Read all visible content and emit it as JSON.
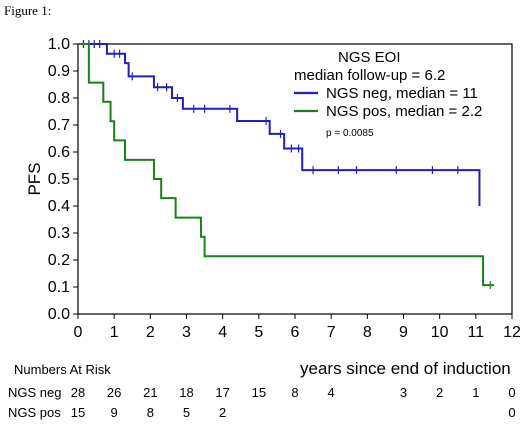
{
  "figure_label": "Figure 1:",
  "chart_data": {
    "type": "line",
    "ylabel": "PFS",
    "xlabel": "years since end of induction",
    "xlim": [
      0,
      12
    ],
    "ylim": [
      0.0,
      1.0
    ],
    "x_ticks": [
      "0",
      "1",
      "2",
      "3",
      "4",
      "5",
      "6",
      "7",
      "8",
      "9",
      "10",
      "11",
      "12"
    ],
    "y_ticks": [
      "0.0",
      "0.1",
      "0.2",
      "0.3",
      "0.4",
      "0.5",
      "0.6",
      "0.7",
      "0.8",
      "0.9",
      "1.0"
    ],
    "legend": {
      "title": "NGS EOI",
      "subtitle": "median follow-up = 6.2",
      "placement": "top-right"
    },
    "annotation": "p = 0.0085",
    "series": [
      {
        "name": "NGS neg, median =  11",
        "color": "#1f1fbf",
        "steps": [
          [
            0,
            1.0
          ],
          [
            0.8,
            0.964
          ],
          [
            1.3,
            0.929
          ],
          [
            1.4,
            0.88
          ],
          [
            2.1,
            0.84
          ],
          [
            2.6,
            0.8
          ],
          [
            2.9,
            0.76
          ],
          [
            4.4,
            0.715
          ],
          [
            5.3,
            0.667
          ],
          [
            5.7,
            0.613
          ],
          [
            6.2,
            0.533
          ],
          [
            11.1,
            0.533
          ],
          [
            11.1,
            0.4
          ]
        ],
        "censored": [
          0.15,
          0.3,
          0.45,
          0.6,
          1.0,
          1.15,
          1.5,
          2.2,
          2.45,
          2.75,
          3.2,
          3.5,
          4.2,
          5.2,
          5.6,
          5.9,
          6.1,
          6.5,
          7.2,
          7.7,
          8.8,
          9.8,
          10.5
        ]
      },
      {
        "name": "NGS pos, median = 2.2",
        "color": "#1a801a",
        "steps": [
          [
            0,
            1.0
          ],
          [
            0.3,
            0.857
          ],
          [
            0.7,
            0.786
          ],
          [
            0.9,
            0.714
          ],
          [
            1.0,
            0.643
          ],
          [
            1.3,
            0.571
          ],
          [
            2.1,
            0.5
          ],
          [
            2.3,
            0.429
          ],
          [
            2.7,
            0.357
          ],
          [
            3.4,
            0.286
          ],
          [
            3.5,
            0.214
          ],
          [
            11.2,
            0.214
          ],
          [
            11.2,
            0.107
          ],
          [
            11.5,
            0.107
          ]
        ],
        "censored": [
          11.4
        ]
      }
    ]
  },
  "risk_table": {
    "title": "Numbers At Risk",
    "rows": [
      {
        "label": "NGS neg",
        "counts": [
          "28",
          "26",
          "21",
          "18",
          "17",
          "15",
          "8",
          "4",
          "",
          "3",
          "2",
          "1",
          "0"
        ]
      },
      {
        "label": "NGS pos",
        "counts": [
          "15",
          "9",
          "8",
          "5",
          "2",
          "",
          "",
          "",
          "",
          "",
          "",
          "",
          "0"
        ]
      }
    ]
  }
}
